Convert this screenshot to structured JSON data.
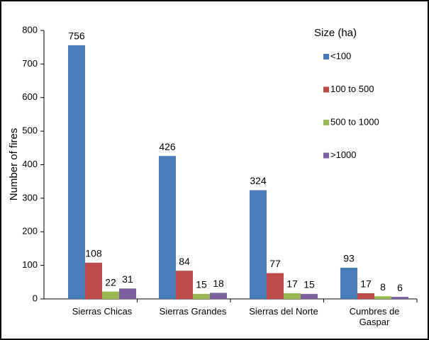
{
  "chart_data": {
    "type": "bar",
    "y_label": "Number of fires",
    "legend_title": "Size (ha)",
    "categories": [
      "Sierras Chicas",
      "Sierras Grandes",
      "Sierras del Norte",
      "Cumbres de\nGaspar"
    ],
    "series": [
      {
        "name": "<100",
        "color": "#4a7ebb",
        "values": [
          756,
          426,
          324,
          93
        ]
      },
      {
        "name": "100 to 500",
        "color": "#be4b48",
        "values": [
          108,
          84,
          77,
          17
        ]
      },
      {
        "name": "500 to 1000",
        "color": "#98b954",
        "values": [
          22,
          15,
          17,
          8
        ]
      },
      {
        "name": ">1000",
        "color": "#7d60a0",
        "values": [
          31,
          18,
          15,
          6
        ]
      }
    ],
    "ylim": [
      0,
      800
    ],
    "yticks": [
      0,
      100,
      200,
      300,
      400,
      500,
      600,
      700,
      800
    ],
    "grid": false,
    "legend": "right"
  }
}
